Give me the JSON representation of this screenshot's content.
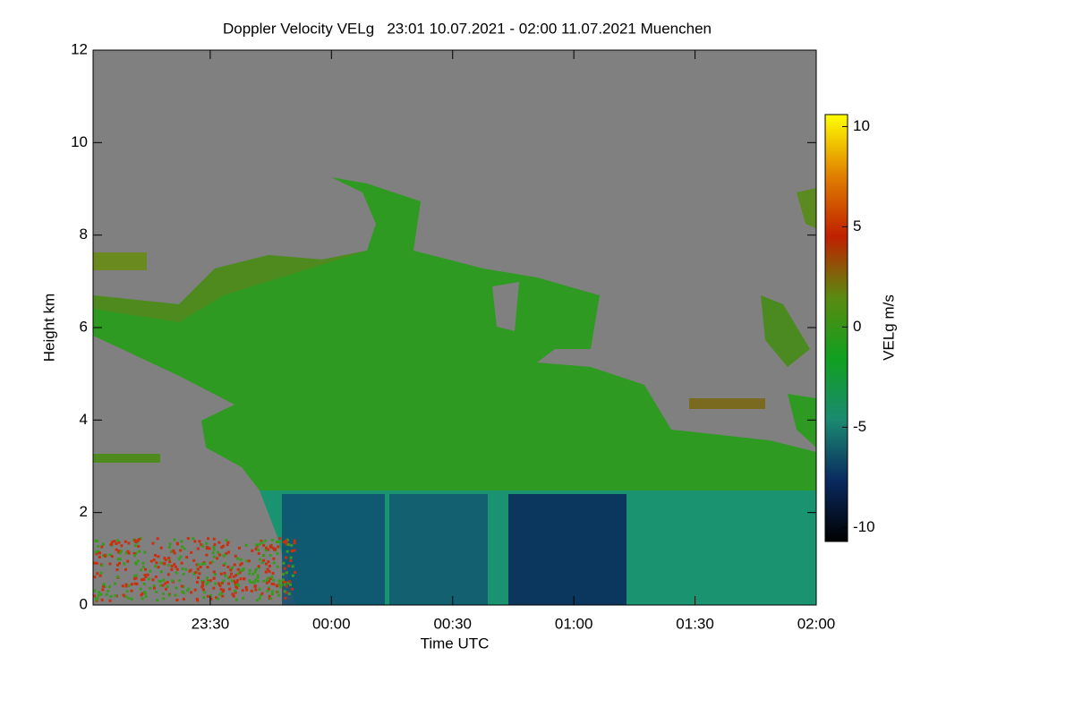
{
  "chart_data": {
    "type": "heatmap",
    "title": "Doppler Velocity VELg   23:01 10.07.2021 - 02:00 11.07.2021 Muenchen",
    "x_label": "Time UTC",
    "y_label": "Height km",
    "colorbar_label": "VELg m/s",
    "xlim": [
      1381,
      1560
    ],
    "xticks": [
      {
        "value": 1410,
        "label": "23:30"
      },
      {
        "value": 1440,
        "label": "00:00"
      },
      {
        "value": 1470,
        "label": "00:30"
      },
      {
        "value": 1500,
        "label": "01:00"
      },
      {
        "value": 1530,
        "label": "01:30"
      },
      {
        "value": 1560,
        "label": "02:00"
      }
    ],
    "ylim": [
      0,
      12
    ],
    "yticks": [
      0,
      2,
      4,
      6,
      8,
      10,
      12
    ],
    "clim": [
      -10.7,
      10.6
    ],
    "cticks": [
      -10,
      -5,
      0,
      5,
      10
    ],
    "colormap": [
      "#000000",
      "#0a2a60",
      "#1a8a70",
      "#10a020",
      "#5a8a10",
      "#c02000",
      "#e08000",
      "#ffff00"
    ],
    "background": "#808080"
  }
}
